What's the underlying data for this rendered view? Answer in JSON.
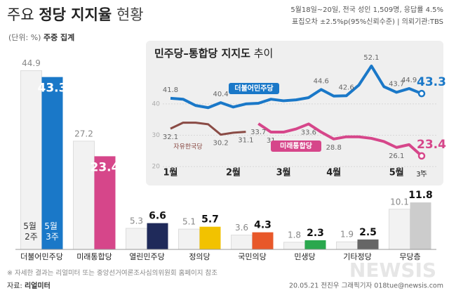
{
  "header": {
    "title": {
      "lead": "주요",
      "main": "정당 지지율",
      "tail": "현황"
    },
    "unit": "(단위: %)",
    "basis": "주중 집계",
    "info": [
      "5월18일~20일, 전국 성인 1,509명, 응답률 4.5%",
      "표집오차 ±2.5%p(95%신뢰수준) | 의뢰기관:TBS"
    ]
  },
  "footer": {
    "note": "※ 자세한 결과는 리얼미터 또는 중앙선거여론조사심의위원회 홈페이지 참조",
    "source_label": "자료:",
    "source": "리얼미터",
    "credit": "20.05.21 전진우 그래픽기자 018tue@newsis.com",
    "watermark": "NEWSIS"
  },
  "chart_data": [
    {
      "type": "bar",
      "categories": [
        "더불어민주당",
        "미래통합당",
        "열린민주당",
        "정의당",
        "국민의당",
        "민생당",
        "기타정당",
        "무당층"
      ],
      "ylim": [
        0,
        45
      ],
      "series": [
        {
          "name": "5월 2주",
          "color": "#f2f2f2",
          "values": [
            44.9,
            27.2,
            5.3,
            5.1,
            3.6,
            1.8,
            1.9,
            10.1
          ]
        },
        {
          "name": "5월 3주",
          "colors": [
            "#1a78c8",
            "#d6468a",
            "#1f2a5a",
            "#f2c200",
            "#e8582a",
            "#2aa84e",
            "#666666",
            "#cccccc"
          ],
          "values": [
            43.3,
            23.4,
            6.6,
            5.7,
            4.3,
            2.3,
            2.5,
            11.8
          ]
        }
      ]
    },
    {
      "type": "line",
      "title": {
        "main": "민주당–통합당 지지도",
        "tail": "추이"
      },
      "x": [
        0,
        1,
        2,
        3,
        4,
        5,
        6,
        7,
        8,
        9,
        10,
        11,
        12,
        13,
        14,
        15,
        16,
        17,
        18,
        19,
        20
      ],
      "xlim": [
        0,
        20
      ],
      "xticks": [
        {
          "value": 0,
          "label": "1월"
        },
        {
          "value": 5,
          "label": "2월"
        },
        {
          "value": 9,
          "label": "3월"
        },
        {
          "value": 13,
          "label": "4월"
        },
        {
          "value": 18,
          "label": "5월"
        },
        {
          "value": 20,
          "label": "3주"
        }
      ],
      "ylim": [
        18,
        55
      ],
      "yticks": [
        20,
        30,
        40
      ],
      "grid": true,
      "series": [
        {
          "name": "더불어민주당",
          "color": "#1a78c8",
          "values": [
            41.8,
            41.5,
            39.5,
            38.8,
            40.4,
            39.0,
            40.0,
            40.2,
            41.5,
            41.0,
            41.3,
            42.0,
            44.6,
            42.5,
            42.6,
            46.0,
            52.1,
            45.5,
            43.7,
            44.9,
            43.3
          ],
          "value_labels": [
            "41.8",
            null,
            null,
            null,
            "40.4",
            null,
            null,
            null,
            null,
            null,
            null,
            null,
            "44.6",
            null,
            "42.6",
            null,
            "52.1",
            null,
            "43.7",
            "44.9",
            "43.3"
          ]
        },
        {
          "name": "자유한국당",
          "color": "#8a4b45",
          "values": [
            32.1,
            34.0,
            34.0,
            33.5,
            30.2,
            30.8,
            31.1,
            null,
            null,
            null,
            null,
            null,
            null,
            null,
            null,
            null,
            null,
            null,
            null,
            null,
            null
          ],
          "value_labels": [
            "32.1",
            null,
            null,
            null,
            "30.2",
            null,
            "31.1",
            null,
            null,
            null,
            null,
            null,
            null,
            null,
            null,
            null,
            null,
            null,
            null,
            null,
            null
          ]
        },
        {
          "name": "미래통합당",
          "color": "#d6468a",
          "values": [
            null,
            null,
            null,
            null,
            null,
            null,
            null,
            33.7,
            31.0,
            31.0,
            32.0,
            33.6,
            31.0,
            28.8,
            29.5,
            29.5,
            29.0,
            28.0,
            26.1,
            27.0,
            23.4
          ],
          "value_labels": [
            null,
            null,
            null,
            null,
            null,
            null,
            null,
            "33.7",
            "31",
            null,
            null,
            "33.6",
            null,
            "28.8",
            null,
            null,
            null,
            null,
            "26.1",
            null,
            "23.4"
          ]
        }
      ]
    }
  ]
}
